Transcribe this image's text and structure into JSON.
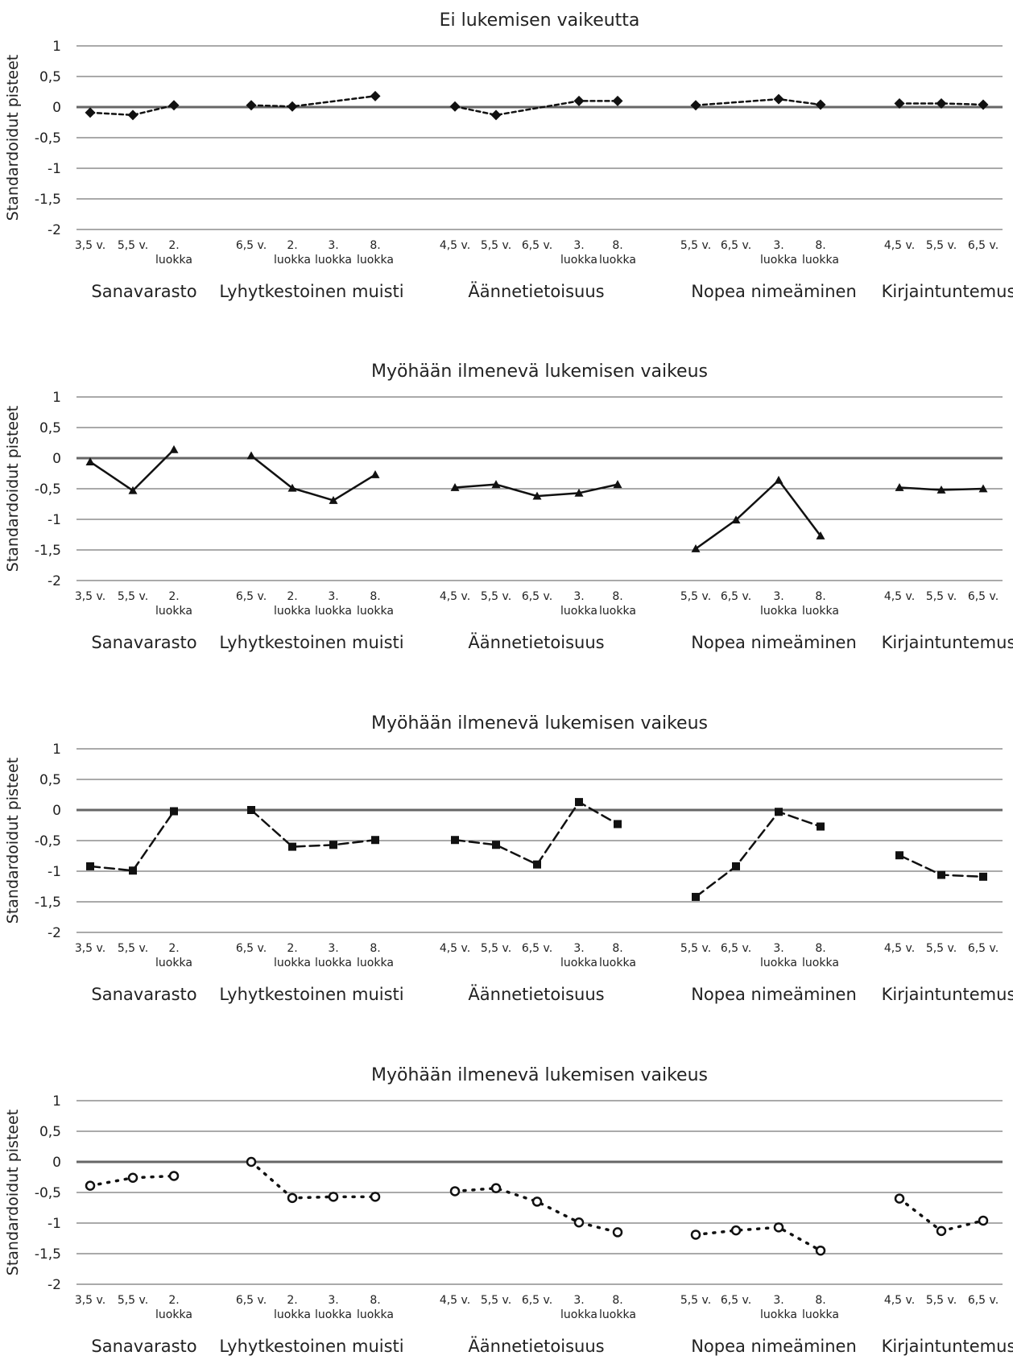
{
  "chart_data": [
    {
      "type": "line",
      "title": "Ei lukemisen vaikeutta",
      "ylabel": "Standardoidut pisteet",
      "ylim": [
        -2,
        1
      ],
      "yticks": [
        "1",
        "0,5",
        "0",
        "-0,5",
        "-1",
        "-1,5",
        "-2"
      ],
      "grid": true,
      "legend": "none",
      "marker": "diamond",
      "line_style": "short-dash",
      "groups": [
        {
          "label": "Sanavarasto",
          "ticks": [
            [
              "3,5 v."
            ],
            [
              "5,5 v."
            ],
            [
              "2.",
              "luokka"
            ]
          ],
          "values": [
            -0.09,
            -0.13,
            0.03
          ]
        },
        {
          "label": "Lyhytkestoinen muisti",
          "ticks": [
            [
              "6,5 v."
            ],
            [
              "2.",
              "luokka"
            ],
            [
              "3.",
              "luokka"
            ],
            [
              "8.",
              "luokka"
            ]
          ],
          "values": [
            0.03,
            0.01,
            null,
            0.18
          ]
        },
        {
          "label": "Äännetietoisuus",
          "ticks": [
            [
              "4,5 v."
            ],
            [
              "5,5 v."
            ],
            [
              "6,5 v."
            ],
            [
              "3.",
              "luokka"
            ],
            [
              "8.",
              "luokka"
            ]
          ],
          "values": [
            0.01,
            -0.13,
            null,
            0.1,
            0.1
          ]
        },
        {
          "label": "Nopea nimeäminen",
          "ticks": [
            [
              "5,5 v."
            ],
            [
              "6,5 v."
            ],
            [
              "3.",
              "luokka"
            ],
            [
              "8.",
              "luokka"
            ]
          ],
          "values": [
            0.03,
            null,
            0.13,
            0.04
          ]
        },
        {
          "label": "Kirjaintuntemus",
          "ticks": [
            [
              "4,5 v."
            ],
            [
              "5,5 v."
            ],
            [
              "6,5 v."
            ]
          ],
          "values": [
            0.06,
            0.06,
            0.04
          ]
        }
      ]
    },
    {
      "type": "line",
      "title": "Myöhään ilmenevä lukemisen vaikeus",
      "ylabel": "Standardoidut pisteet",
      "ylim": [
        -2,
        1
      ],
      "yticks": [
        "1",
        "0,5",
        "0",
        "-0,5",
        "-1",
        "-1,5",
        "-2"
      ],
      "grid": true,
      "legend": "none",
      "marker": "triangle",
      "line_style": "solid",
      "groups": [
        {
          "label": "Sanavarasto",
          "ticks": [
            [
              "3,5 v."
            ],
            [
              "5,5 v."
            ],
            [
              "2.",
              "luokka"
            ]
          ],
          "values": [
            -0.06,
            -0.53,
            0.14
          ]
        },
        {
          "label": "Lyhytkestoinen muisti",
          "ticks": [
            [
              "6,5 v."
            ],
            [
              "2.",
              "luokka"
            ],
            [
              "3.",
              "luokka"
            ],
            [
              "8.",
              "luokka"
            ]
          ],
          "values": [
            0.04,
            -0.49,
            -0.69,
            -0.27
          ]
        },
        {
          "label": "Äännetietoisuus",
          "ticks": [
            [
              "4,5 v."
            ],
            [
              "5,5 v."
            ],
            [
              "6,5 v."
            ],
            [
              "3.",
              "luokka"
            ],
            [
              "8.",
              "luokka"
            ]
          ],
          "values": [
            -0.48,
            -0.43,
            -0.62,
            -0.57,
            -0.43
          ]
        },
        {
          "label": "Nopea nimeäminen",
          "ticks": [
            [
              "5,5 v."
            ],
            [
              "6,5 v."
            ],
            [
              "3.",
              "luokka"
            ],
            [
              "8.",
              "luokka"
            ]
          ],
          "values": [
            -1.48,
            -1.01,
            -0.36,
            -1.27
          ]
        },
        {
          "label": "Kirjaintuntemus",
          "ticks": [
            [
              "4,5 v."
            ],
            [
              "5,5 v."
            ],
            [
              "6,5 v."
            ]
          ],
          "values": [
            -0.48,
            -0.52,
            -0.5
          ]
        }
      ]
    },
    {
      "type": "line",
      "title": "Myöhään ilmenevä lukemisen vaikeus",
      "ylabel": "Standardoidut pisteet",
      "ylim": [
        -2,
        1
      ],
      "yticks": [
        "1",
        "0,5",
        "0",
        "-0,5",
        "-1",
        "-1,5",
        "-2"
      ],
      "grid": true,
      "legend": "none",
      "marker": "square",
      "line_style": "long-dash",
      "groups": [
        {
          "label": "Sanavarasto",
          "ticks": [
            [
              "3,5 v."
            ],
            [
              "5,5 v."
            ],
            [
              "2.",
              "luokka"
            ]
          ],
          "values": [
            -0.92,
            -0.99,
            -0.02
          ]
        },
        {
          "label": "Lyhytkestoinen muisti",
          "ticks": [
            [
              "6,5 v."
            ],
            [
              "2.",
              "luokka"
            ],
            [
              "3.",
              "luokka"
            ],
            [
              "8.",
              "luokka"
            ]
          ],
          "values": [
            0.0,
            -0.6,
            -0.57,
            -0.49
          ]
        },
        {
          "label": "Äännetietoisuus",
          "ticks": [
            [
              "4,5 v."
            ],
            [
              "5,5 v."
            ],
            [
              "6,5 v."
            ],
            [
              "3.",
              "luokka"
            ],
            [
              "8.",
              "luokka"
            ]
          ],
          "values": [
            -0.49,
            -0.57,
            -0.89,
            0.13,
            -0.23
          ]
        },
        {
          "label": "Nopea nimeäminen",
          "ticks": [
            [
              "5,5 v."
            ],
            [
              "6,5 v."
            ],
            [
              "3.",
              "luokka"
            ],
            [
              "8.",
              "luokka"
            ]
          ],
          "values": [
            -1.42,
            -0.92,
            -0.03,
            -0.27
          ]
        },
        {
          "label": "Kirjaintuntemus",
          "ticks": [
            [
              "4,5 v."
            ],
            [
              "5,5 v."
            ],
            [
              "6,5 v."
            ]
          ],
          "values": [
            -0.74,
            -1.06,
            -1.09
          ]
        }
      ]
    },
    {
      "type": "line",
      "title": "Myöhään ilmenevä lukemisen vaikeus",
      "ylabel": "Standardoidut pisteet",
      "ylim": [
        -2,
        1
      ],
      "yticks": [
        "1",
        "0,5",
        "0",
        "-0,5",
        "-1",
        "-1,5",
        "-2"
      ],
      "grid": true,
      "legend": "none",
      "marker": "open-circle",
      "line_style": "dotted",
      "groups": [
        {
          "label": "Sanavarasto",
          "ticks": [
            [
              "3,5 v."
            ],
            [
              "5,5 v."
            ],
            [
              "2.",
              "luokka"
            ]
          ],
          "values": [
            -0.39,
            -0.26,
            -0.23
          ]
        },
        {
          "label": "Lyhytkestoinen muisti",
          "ticks": [
            [
              "6,5 v."
            ],
            [
              "2.",
              "luokka"
            ],
            [
              "3.",
              "luokka"
            ],
            [
              "8.",
              "luokka"
            ]
          ],
          "values": [
            0.0,
            -0.59,
            -0.57,
            -0.57
          ]
        },
        {
          "label": "Äännetietoisuus",
          "ticks": [
            [
              "4,5 v."
            ],
            [
              "5,5 v."
            ],
            [
              "6,5 v."
            ],
            [
              "3.",
              "luokka"
            ],
            [
              "8.",
              "luokka"
            ]
          ],
          "values": [
            -0.48,
            -0.43,
            -0.65,
            -0.99,
            -1.15
          ]
        },
        {
          "label": "Nopea nimeäminen",
          "ticks": [
            [
              "5,5 v."
            ],
            [
              "6,5 v."
            ],
            [
              "3.",
              "luokka"
            ],
            [
              "8.",
              "luokka"
            ]
          ],
          "values": [
            -1.19,
            -1.12,
            -1.07,
            -1.45
          ]
        },
        {
          "label": "Kirjaintuntemus",
          "ticks": [
            [
              "4,5 v."
            ],
            [
              "5,5 v."
            ],
            [
              "6,5 v."
            ]
          ],
          "values": [
            -0.6,
            -1.13,
            -0.96
          ]
        }
      ]
    }
  ]
}
